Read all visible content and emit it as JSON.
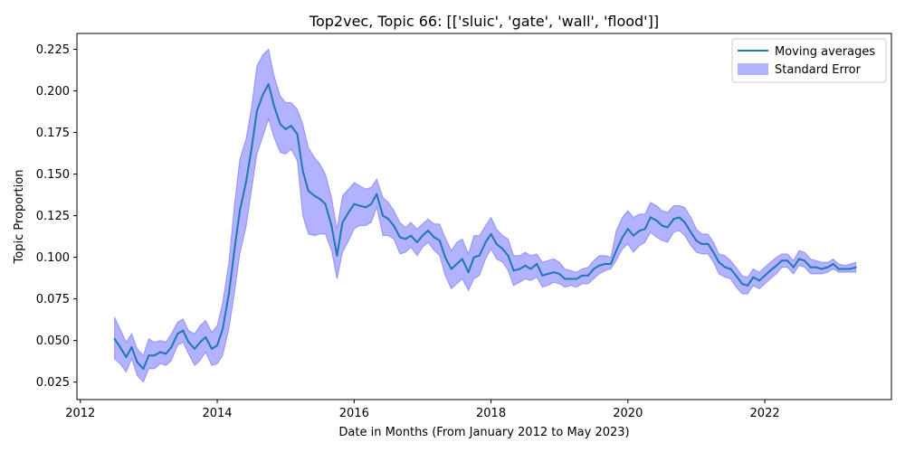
{
  "chart_data": {
    "type": "line",
    "title": "Top2vec, Topic 66: [['sluic', 'gate', 'wall', 'flood']]",
    "xlabel": "Date in Months (From January 2012 to May 2023)",
    "ylabel": "Topic Proportion",
    "xlim": [
      2011.95,
      2023.85
    ],
    "ylim": [
      0.0145,
      0.2345
    ],
    "xticks": [
      2012,
      2014,
      2016,
      2018,
      2020,
      2022
    ],
    "xtick_labels": [
      "2012",
      "2014",
      "2016",
      "2018",
      "2020",
      "2022"
    ],
    "yticks": [
      0.025,
      0.05,
      0.075,
      0.1,
      0.125,
      0.15,
      0.175,
      0.2,
      0.225
    ],
    "ytick_labels": [
      "0.025",
      "0.050",
      "0.075",
      "0.100",
      "0.125",
      "0.150",
      "0.175",
      "0.200",
      "0.225"
    ],
    "grid": false,
    "legend_position": "top-right",
    "legend": [
      {
        "label": "Moving averages",
        "kind": "line",
        "color": "#1f77b4"
      },
      {
        "label": "Standard Error",
        "kind": "band",
        "color": "#0000ff",
        "opacity": 0.3
      }
    ],
    "series": [
      {
        "name": "Moving averages",
        "color": "#1f77b4",
        "x": [
          2012.5,
          2012.58,
          2012.67,
          2012.75,
          2012.83,
          2012.92,
          2013.0,
          2013.08,
          2013.17,
          2013.25,
          2013.33,
          2013.42,
          2013.5,
          2013.58,
          2013.67,
          2013.75,
          2013.83,
          2013.92,
          2014.0,
          2014.08,
          2014.17,
          2014.25,
          2014.33,
          2014.42,
          2014.5,
          2014.58,
          2014.67,
          2014.75,
          2014.83,
          2014.92,
          2015.0,
          2015.08,
          2015.17,
          2015.25,
          2015.33,
          2015.42,
          2015.5,
          2015.58,
          2015.67,
          2015.75,
          2015.83,
          2015.92,
          2016.0,
          2016.08,
          2016.17,
          2016.25,
          2016.33,
          2016.42,
          2016.5,
          2016.58,
          2016.67,
          2016.75,
          2016.83,
          2016.92,
          2017.0,
          2017.08,
          2017.17,
          2017.25,
          2017.33,
          2017.42,
          2017.5,
          2017.58,
          2017.67,
          2017.75,
          2017.83,
          2017.92,
          2018.0,
          2018.08,
          2018.17,
          2018.25,
          2018.33,
          2018.42,
          2018.5,
          2018.58,
          2018.67,
          2018.75,
          2018.83,
          2018.92,
          2019.0,
          2019.08,
          2019.17,
          2019.25,
          2019.33,
          2019.42,
          2019.5,
          2019.58,
          2019.67,
          2019.75,
          2019.83,
          2019.92,
          2020.0,
          2020.08,
          2020.17,
          2020.25,
          2020.33,
          2020.42,
          2020.5,
          2020.58,
          2020.67,
          2020.75,
          2020.83,
          2020.92,
          2021.0,
          2021.08,
          2021.17,
          2021.25,
          2021.33,
          2021.42,
          2021.5,
          2021.58,
          2021.67,
          2021.75,
          2021.83,
          2021.92,
          2022.0,
          2022.08,
          2022.17,
          2022.25,
          2022.33,
          2022.42,
          2022.5,
          2022.58,
          2022.67,
          2022.75,
          2022.83,
          2022.92,
          2023.0,
          2023.08,
          2023.17,
          2023.25,
          2023.33
        ],
        "values": [
          0.051,
          0.046,
          0.04,
          0.046,
          0.037,
          0.033,
          0.041,
          0.041,
          0.043,
          0.042,
          0.046,
          0.054,
          0.056,
          0.049,
          0.045,
          0.049,
          0.052,
          0.045,
          0.047,
          0.057,
          0.078,
          0.104,
          0.128,
          0.145,
          0.165,
          0.188,
          0.198,
          0.204,
          0.191,
          0.18,
          0.177,
          0.179,
          0.174,
          0.152,
          0.14,
          0.137,
          0.135,
          0.132,
          0.119,
          0.101,
          0.121,
          0.127,
          0.132,
          0.131,
          0.13,
          0.132,
          0.138,
          0.125,
          0.123,
          0.119,
          0.112,
          0.111,
          0.113,
          0.109,
          0.113,
          0.116,
          0.112,
          0.11,
          0.1,
          0.093,
          0.096,
          0.099,
          0.091,
          0.1,
          0.101,
          0.109,
          0.114,
          0.108,
          0.105,
          0.101,
          0.092,
          0.093,
          0.095,
          0.093,
          0.096,
          0.089,
          0.09,
          0.091,
          0.09,
          0.087,
          0.087,
          0.087,
          0.089,
          0.089,
          0.093,
          0.095,
          0.096,
          0.096,
          0.104,
          0.112,
          0.117,
          0.113,
          0.116,
          0.117,
          0.124,
          0.122,
          0.119,
          0.118,
          0.123,
          0.124,
          0.121,
          0.115,
          0.11,
          0.108,
          0.108,
          0.103,
          0.097,
          0.094,
          0.093,
          0.089,
          0.084,
          0.083,
          0.088,
          0.086,
          0.089,
          0.092,
          0.095,
          0.098,
          0.098,
          0.094,
          0.099,
          0.098,
          0.094,
          0.094,
          0.093,
          0.094,
          0.096,
          0.093,
          0.093,
          0.093,
          0.094
        ],
        "stderr_lower": [
          0.039,
          0.036,
          0.031,
          0.039,
          0.029,
          0.025,
          0.033,
          0.033,
          0.036,
          0.035,
          0.038,
          0.047,
          0.049,
          0.042,
          0.035,
          0.038,
          0.043,
          0.035,
          0.036,
          0.041,
          0.057,
          0.078,
          0.102,
          0.118,
          0.14,
          0.162,
          0.173,
          0.183,
          0.172,
          0.163,
          0.162,
          0.165,
          0.158,
          0.125,
          0.114,
          0.113,
          0.114,
          0.114,
          0.104,
          0.087,
          0.103,
          0.11,
          0.117,
          0.119,
          0.119,
          0.121,
          0.13,
          0.113,
          0.113,
          0.111,
          0.102,
          0.103,
          0.106,
          0.101,
          0.106,
          0.109,
          0.104,
          0.101,
          0.089,
          0.081,
          0.084,
          0.087,
          0.08,
          0.087,
          0.089,
          0.099,
          0.105,
          0.099,
          0.097,
          0.092,
          0.083,
          0.085,
          0.087,
          0.086,
          0.088,
          0.082,
          0.083,
          0.085,
          0.084,
          0.082,
          0.083,
          0.082,
          0.084,
          0.084,
          0.087,
          0.09,
          0.092,
          0.093,
          0.098,
          0.105,
          0.108,
          0.103,
          0.107,
          0.109,
          0.115,
          0.112,
          0.11,
          0.109,
          0.115,
          0.116,
          0.113,
          0.107,
          0.103,
          0.102,
          0.102,
          0.097,
          0.09,
          0.088,
          0.087,
          0.082,
          0.078,
          0.078,
          0.083,
          0.081,
          0.084,
          0.087,
          0.09,
          0.094,
          0.094,
          0.09,
          0.095,
          0.094,
          0.09,
          0.09,
          0.09,
          0.091,
          0.093,
          0.091,
          0.091,
          0.091,
          0.091
        ],
        "stderr_upper": [
          0.064,
          0.057,
          0.049,
          0.054,
          0.045,
          0.041,
          0.051,
          0.049,
          0.05,
          0.049,
          0.054,
          0.061,
          0.063,
          0.056,
          0.054,
          0.059,
          0.062,
          0.055,
          0.059,
          0.073,
          0.097,
          0.131,
          0.159,
          0.171,
          0.19,
          0.215,
          0.222,
          0.225,
          0.209,
          0.197,
          0.193,
          0.193,
          0.189,
          0.18,
          0.166,
          0.16,
          0.156,
          0.15,
          0.136,
          0.117,
          0.137,
          0.141,
          0.145,
          0.143,
          0.141,
          0.142,
          0.147,
          0.136,
          0.133,
          0.128,
          0.121,
          0.118,
          0.121,
          0.117,
          0.12,
          0.123,
          0.12,
          0.12,
          0.112,
          0.104,
          0.109,
          0.111,
          0.102,
          0.113,
          0.113,
          0.119,
          0.124,
          0.117,
          0.113,
          0.111,
          0.101,
          0.101,
          0.103,
          0.101,
          0.102,
          0.097,
          0.098,
          0.099,
          0.097,
          0.093,
          0.092,
          0.091,
          0.093,
          0.094,
          0.098,
          0.101,
          0.101,
          0.1,
          0.116,
          0.124,
          0.128,
          0.124,
          0.126,
          0.126,
          0.133,
          0.131,
          0.128,
          0.127,
          0.131,
          0.131,
          0.13,
          0.124,
          0.117,
          0.114,
          0.114,
          0.109,
          0.102,
          0.101,
          0.098,
          0.094,
          0.089,
          0.088,
          0.093,
          0.091,
          0.094,
          0.097,
          0.1,
          0.102,
          0.102,
          0.098,
          0.104,
          0.103,
          0.099,
          0.098,
          0.097,
          0.097,
          0.099,
          0.096,
          0.095,
          0.096,
          0.097
        ]
      }
    ]
  }
}
